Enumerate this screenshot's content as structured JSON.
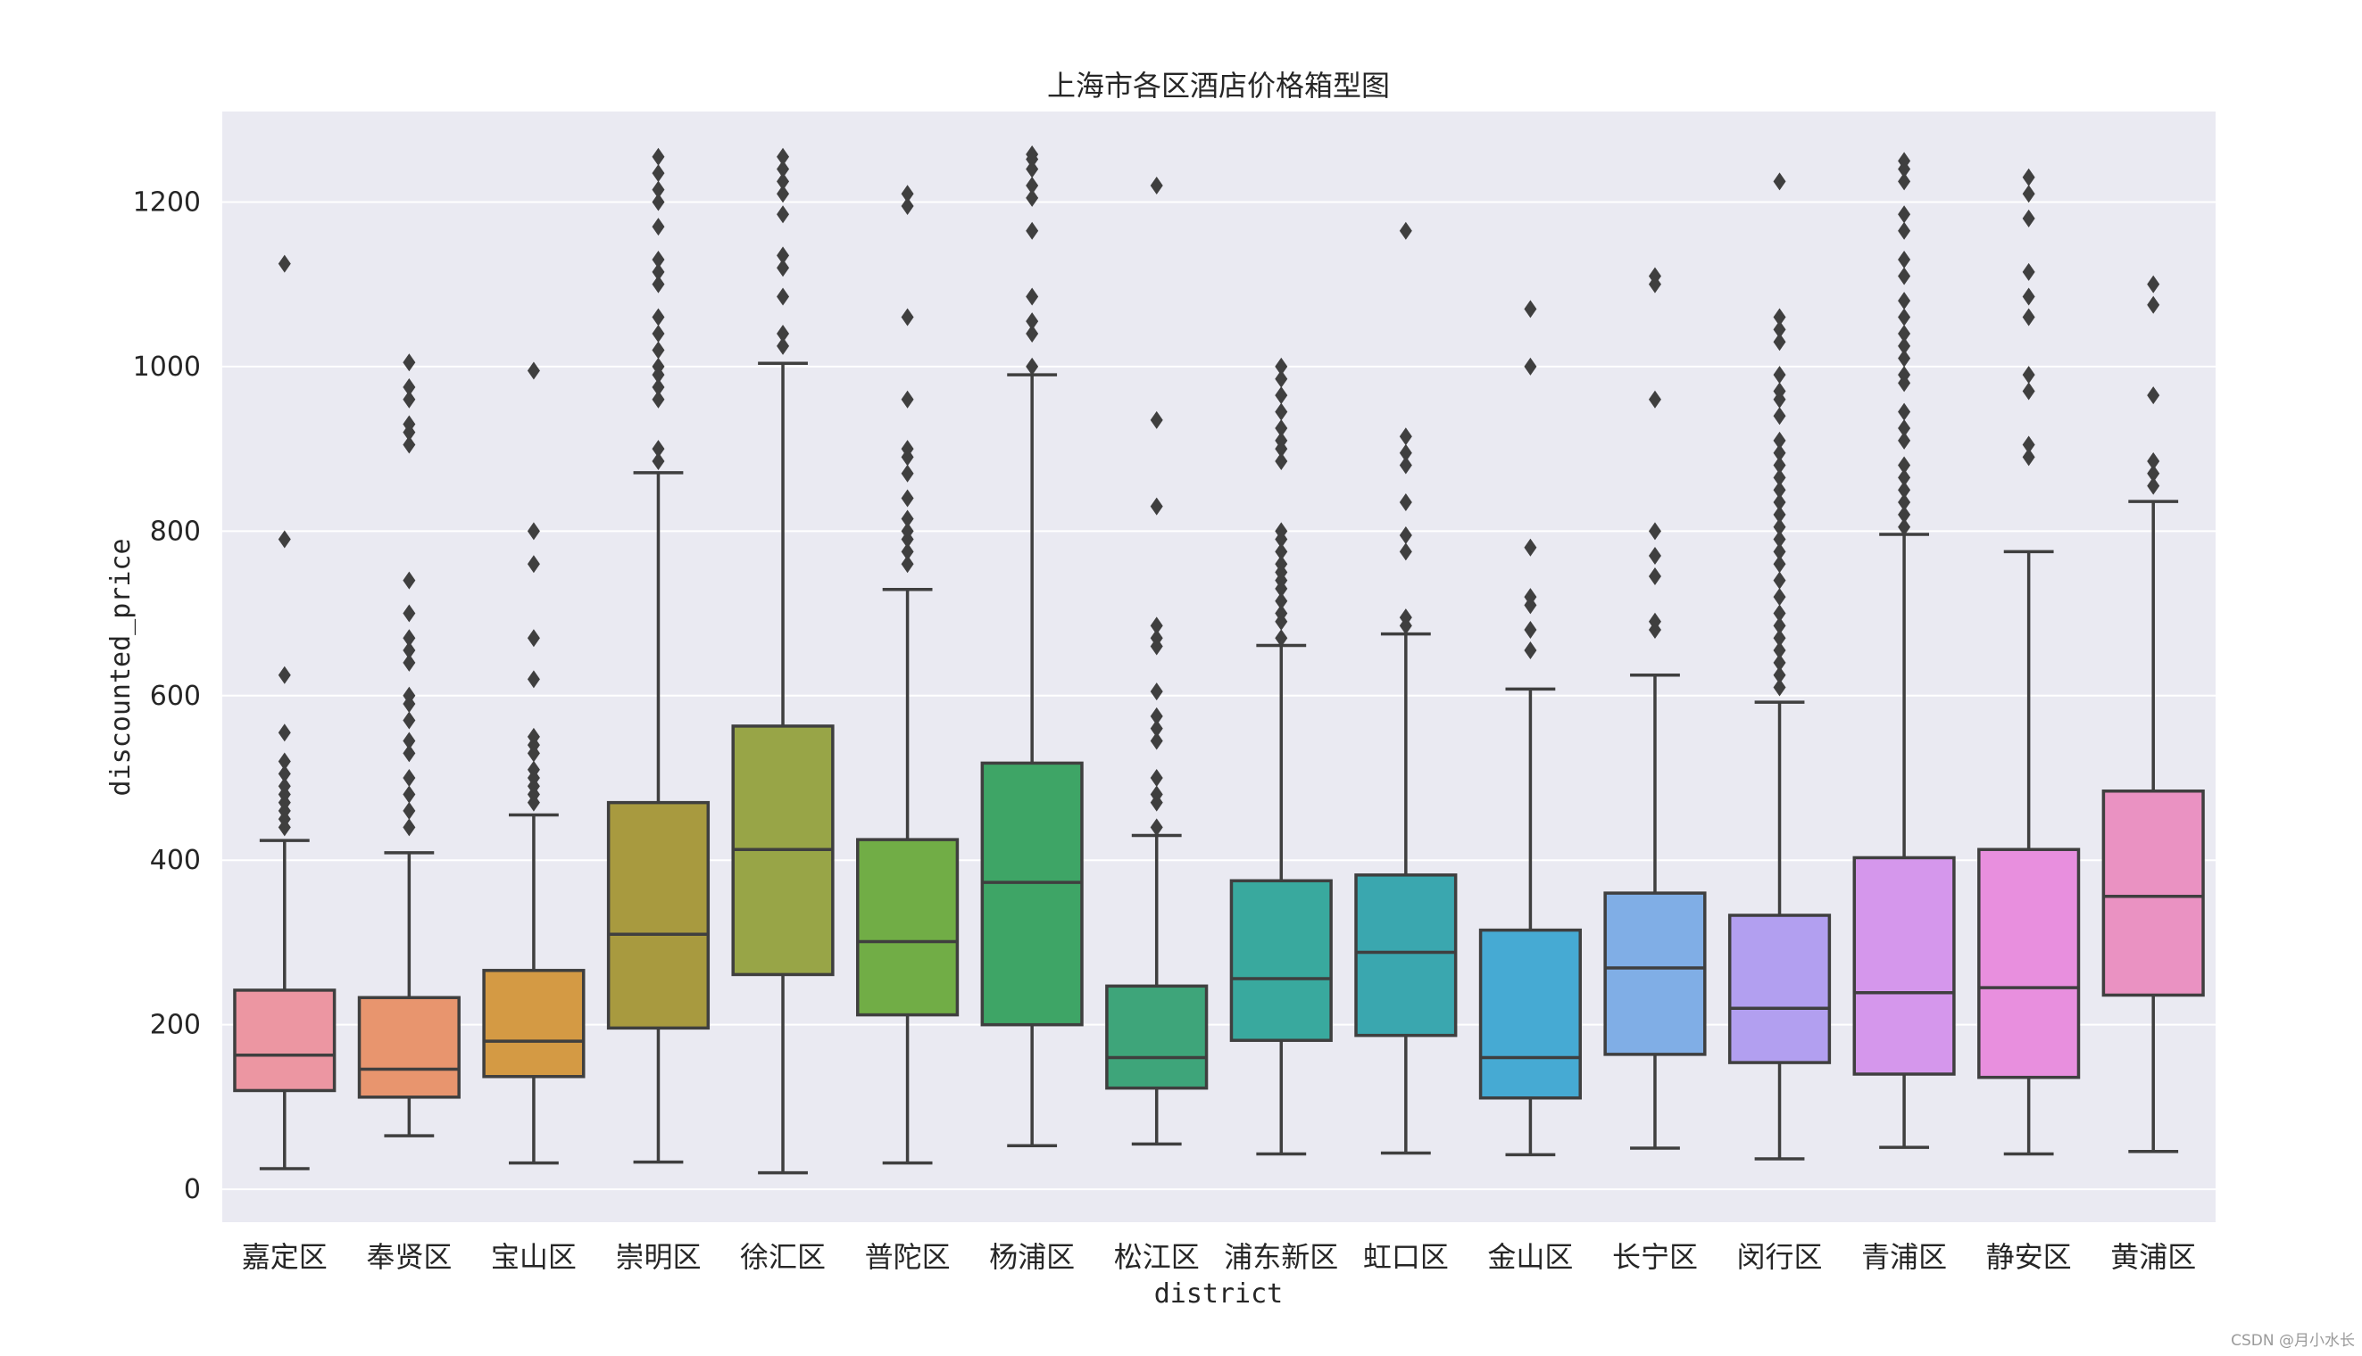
{
  "watermark": "CSDN @月小水长",
  "chart_data": {
    "type": "box",
    "title": "上海市各区酒店价格箱型图",
    "xlabel": "district",
    "ylabel": "discounted_price",
    "ylim": [
      -40,
      1310
    ],
    "yticks": [
      0,
      200,
      400,
      600,
      800,
      1000,
      1200
    ],
    "grid": true,
    "categories": [
      {
        "name": "嘉定区",
        "color": "#ec96a2",
        "whisker_low": 25,
        "q1": 120,
        "median": 163,
        "q3": 242,
        "whisker_high": 424,
        "outliers": [
          440,
          450,
          460,
          470,
          480,
          490,
          505,
          520,
          555,
          625,
          790,
          1125
        ]
      },
      {
        "name": "奉贤区",
        "color": "#e8956e",
        "whisker_low": 65,
        "q1": 112,
        "median": 146,
        "q3": 233,
        "whisker_high": 409,
        "outliers": [
          440,
          460,
          480,
          500,
          530,
          545,
          570,
          590,
          600,
          640,
          655,
          670,
          700,
          740,
          905,
          920,
          930,
          960,
          975,
          1005
        ]
      },
      {
        "name": "宝山区",
        "color": "#d49a44",
        "whisker_low": 32,
        "q1": 137,
        "median": 180,
        "q3": 266,
        "whisker_high": 455,
        "outliers": [
          470,
          480,
          490,
          500,
          510,
          530,
          540,
          550,
          620,
          670,
          760,
          800,
          995
        ]
      },
      {
        "name": "崇明区",
        "color": "#a89a3f",
        "whisker_low": 33,
        "q1": 196,
        "median": 310,
        "q3": 470,
        "whisker_high": 871,
        "outliers": [
          885,
          900,
          960,
          975,
          990,
          1000,
          1020,
          1040,
          1060,
          1100,
          1115,
          1130,
          1170,
          1200,
          1215,
          1235,
          1255
        ]
      },
      {
        "name": "徐汇区",
        "color": "#98a547",
        "whisker_low": 20,
        "q1": 261,
        "median": 413,
        "q3": 563,
        "whisker_high": 1004,
        "outliers": [
          1025,
          1040,
          1085,
          1120,
          1135,
          1185,
          1210,
          1225,
          1240,
          1255
        ]
      },
      {
        "name": "普陀区",
        "color": "#71ad46",
        "whisker_low": 32,
        "q1": 212,
        "median": 301,
        "q3": 425,
        "whisker_high": 729,
        "outliers": [
          760,
          775,
          790,
          800,
          815,
          840,
          870,
          890,
          900,
          960,
          1060,
          1195,
          1210
        ]
      },
      {
        "name": "杨浦区",
        "color": "#3ea566",
        "whisker_low": 53,
        "q1": 200,
        "median": 373,
        "q3": 518,
        "whisker_high": 990,
        "outliers": [
          1000,
          1040,
          1055,
          1085,
          1165,
          1205,
          1220,
          1240,
          1252,
          1258
        ]
      },
      {
        "name": "松江区",
        "color": "#3ea57a",
        "whisker_low": 55,
        "q1": 123,
        "median": 160,
        "q3": 247,
        "whisker_high": 430,
        "outliers": [
          440,
          470,
          480,
          500,
          545,
          560,
          575,
          605,
          660,
          670,
          685,
          830,
          935,
          1220
        ]
      },
      {
        "name": "浦东新区",
        "color": "#39a99e",
        "whisker_low": 43,
        "q1": 181,
        "median": 256,
        "q3": 375,
        "whisker_high": 661,
        "outliers": [
          670,
          690,
          700,
          715,
          730,
          740,
          750,
          760,
          775,
          790,
          800,
          885,
          900,
          910,
          925,
          945,
          965,
          985,
          1000
        ]
      },
      {
        "name": "虹口区",
        "color": "#3aa7af",
        "whisker_low": 44,
        "q1": 187,
        "median": 288,
        "q3": 382,
        "whisker_high": 675,
        "outliers": [
          685,
          695,
          775,
          795,
          835,
          880,
          895,
          915,
          1165
        ]
      },
      {
        "name": "金山区",
        "color": "#46aad3",
        "whisker_low": 42,
        "q1": 111,
        "median": 160,
        "q3": 315,
        "whisker_high": 608,
        "outliers": [
          655,
          680,
          710,
          720,
          780,
          1000,
          1070
        ]
      },
      {
        "name": "长宁区",
        "color": "#80aee6",
        "whisker_low": 50,
        "q1": 164,
        "median": 269,
        "q3": 360,
        "whisker_high": 625,
        "outliers": [
          680,
          690,
          745,
          770,
          800,
          960,
          1100,
          1110
        ]
      },
      {
        "name": "闵行区",
        "color": "#b29ff0",
        "whisker_low": 37,
        "q1": 154,
        "median": 220,
        "q3": 333,
        "whisker_high": 592,
        "outliers": [
          610,
          625,
          640,
          655,
          670,
          685,
          700,
          720,
          740,
          760,
          775,
          790,
          805,
          820,
          835,
          850,
          865,
          880,
          895,
          910,
          940,
          960,
          970,
          990,
          1030,
          1045,
          1060,
          1225
        ]
      },
      {
        "name": "青浦区",
        "color": "#d597ec",
        "whisker_low": 51,
        "q1": 140,
        "median": 239,
        "q3": 403,
        "whisker_high": 796,
        "outliers": [
          805,
          820,
          835,
          850,
          865,
          880,
          910,
          925,
          945,
          980,
          990,
          1010,
          1025,
          1040,
          1060,
          1080,
          1110,
          1130,
          1165,
          1185,
          1225,
          1240,
          1250
        ]
      },
      {
        "name": "静安区",
        "color": "#e88fde",
        "whisker_low": 43,
        "q1": 136,
        "median": 245,
        "q3": 413,
        "whisker_high": 775,
        "outliers": [
          890,
          905,
          970,
          990,
          1060,
          1085,
          1115,
          1180,
          1210,
          1230
        ]
      },
      {
        "name": "黄浦区",
        "color": "#ea92c2",
        "whisker_low": 46,
        "q1": 236,
        "median": 356,
        "q3": 484,
        "whisker_high": 836,
        "outliers": [
          855,
          870,
          885,
          965,
          1075,
          1100
        ]
      }
    ]
  }
}
